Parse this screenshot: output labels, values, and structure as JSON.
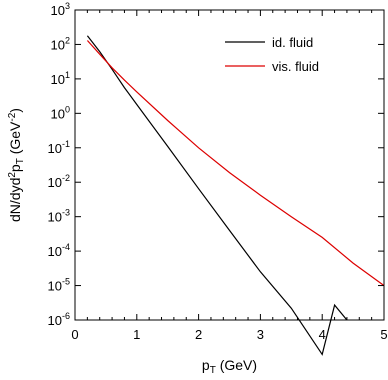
{
  "chart_data": {
    "type": "line",
    "xlabel": "pT (GeV)",
    "ylabel": "dN/dyd2pT (GeV-2)",
    "x_ticks": [
      "0",
      "1",
      "2",
      "3",
      "4",
      "5"
    ],
    "y_ticks": [
      {
        "base": "10",
        "exp": "-6"
      },
      {
        "base": "10",
        "exp": "-5"
      },
      {
        "base": "10",
        "exp": "-4"
      },
      {
        "base": "10",
        "exp": "-3"
      },
      {
        "base": "10",
        "exp": "-2"
      },
      {
        "base": "10",
        "exp": "-1"
      },
      {
        "base": "10",
        "exp": "0"
      },
      {
        "base": "10",
        "exp": "1"
      },
      {
        "base": "10",
        "exp": "2"
      },
      {
        "base": "10",
        "exp": "3"
      }
    ],
    "xlim": [
      0,
      5
    ],
    "ylim": [
      1e-06,
      1000
    ],
    "y_scale": "log",
    "grid": false,
    "legend_position": "top-right",
    "series": [
      {
        "name": "id. fluid",
        "color": "#000000",
        "x": [
          0.2,
          0.4,
          0.6,
          0.8,
          1.0,
          1.5,
          2.0,
          2.5,
          3.0,
          3.5,
          4.0,
          4.2,
          4.4
        ],
        "y": [
          180,
          62,
          19,
          5.6,
          1.8,
          0.11,
          0.0065,
          0.0004,
          2.5e-05,
          2.2e-06,
          1e-07,
          2.7e-06,
          1e-06
        ]
      },
      {
        "name": "vis. fluid",
        "color": "#dd0000",
        "x": [
          0.2,
          0.4,
          0.6,
          0.8,
          1.0,
          1.5,
          2.0,
          2.5,
          3.0,
          3.5,
          4.0,
          4.5,
          5.0
        ],
        "y": [
          130,
          52,
          21,
          9.2,
          4.2,
          0.62,
          0.1,
          0.019,
          0.0042,
          0.001,
          0.00025,
          4.5e-05,
          1e-05
        ]
      }
    ]
  }
}
